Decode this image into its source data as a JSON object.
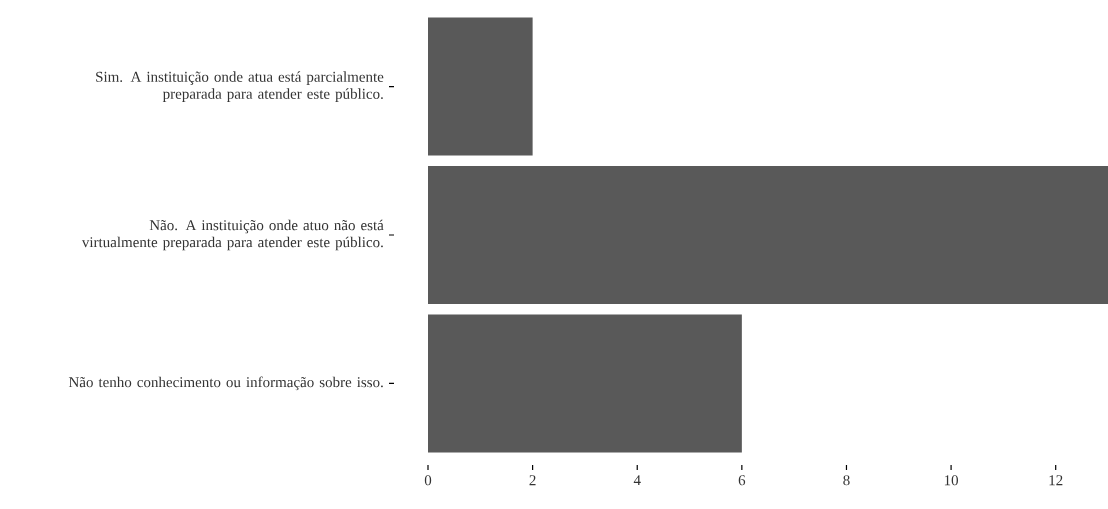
{
  "chart_data": {
    "type": "bar",
    "orientation": "horizontal",
    "categories": [
      "Sim. A instituição onde atua está parcialmente preparada para atender este público.",
      "Não. A instituição onde atuo não está virtualmente preparada para atender este público.",
      "Não tenho conhecimento ou informação sobre isso."
    ],
    "values": [
      2,
      13,
      6
    ],
    "color": "#595959",
    "xlim": [
      0,
      13
    ],
    "xticks": [
      0,
      2,
      4,
      6,
      8,
      10,
      12
    ],
    "grid": false
  }
}
